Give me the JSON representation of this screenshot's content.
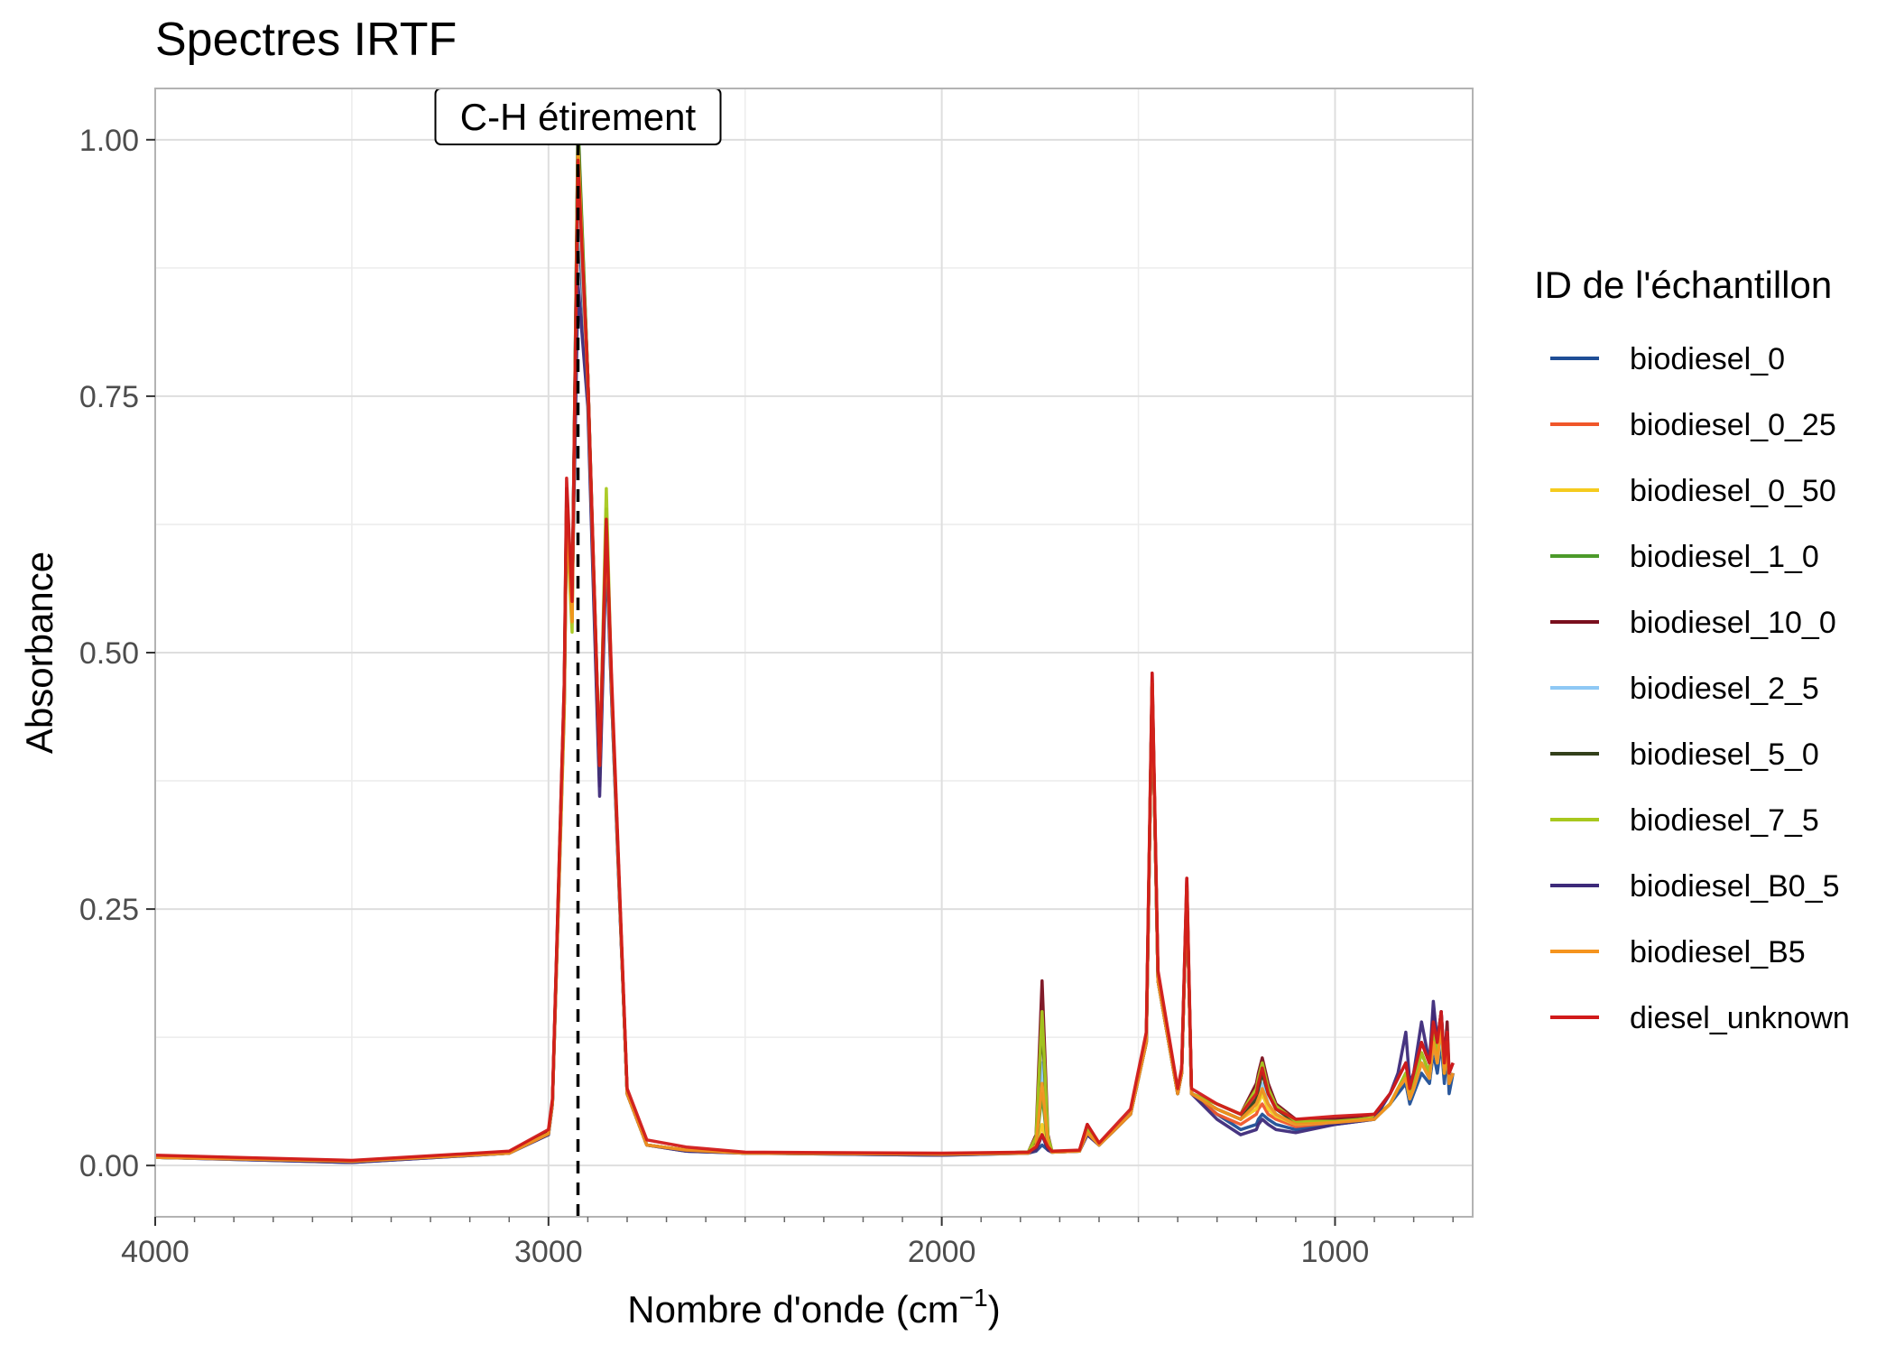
{
  "chart_data": {
    "type": "line",
    "title": "Spectres IRTF",
    "xlabel": "Nombre d'onde (cm",
    "xlabel_sup": "−1",
    "xlabel_close": ")",
    "ylabel": "Absorbance",
    "xlim": [
      4000,
      650
    ],
    "x_reversed": true,
    "ylim": [
      -0.05,
      1.05
    ],
    "x_ticks": [
      4000,
      3000,
      2000,
      1000
    ],
    "x_tick_labels": [
      "4000",
      "3000",
      "2000",
      "1000"
    ],
    "y_ticks": [
      0.0,
      0.25,
      0.5,
      0.75,
      1.0
    ],
    "y_tick_labels": [
      "0.00",
      "0.25",
      "0.50",
      "0.75",
      "1.00"
    ],
    "grid": true,
    "legend_position": "right",
    "legend_title": "ID de l'échantillon",
    "annotation": {
      "label": "C-H étirement",
      "x": 2925
    },
    "x": [
      4000,
      3500,
      3100,
      3000,
      2990,
      2960,
      2954,
      2940,
      2925,
      2900,
      2870,
      2853,
      2840,
      2800,
      2750,
      2650,
      2500,
      2000,
      1780,
      1760,
      1745,
      1730,
      1720,
      1650,
      1630,
      1600,
      1520,
      1480,
      1465,
      1450,
      1400,
      1390,
      1377,
      1365,
      1300,
      1240,
      1200,
      1195,
      1185,
      1170,
      1150,
      1100,
      1000,
      900,
      860,
      840,
      820,
      810,
      800,
      780,
      760,
      750,
      740,
      730,
      722,
      715,
      710,
      700
    ],
    "series": [
      {
        "name": "biodiesel_0",
        "color": "#1f4e96",
        "values": [
          0.008,
          0.003,
          0.012,
          0.03,
          0.06,
          0.45,
          0.64,
          0.55,
          0.93,
          0.75,
          0.38,
          0.61,
          0.46,
          0.07,
          0.02,
          0.014,
          0.012,
          0.01,
          0.012,
          0.014,
          0.02,
          0.015,
          0.013,
          0.014,
          0.03,
          0.02,
          0.05,
          0.12,
          0.47,
          0.18,
          0.07,
          0.09,
          0.27,
          0.07,
          0.05,
          0.035,
          0.04,
          0.045,
          0.05,
          0.045,
          0.04,
          0.035,
          0.04,
          0.045,
          0.06,
          0.07,
          0.08,
          0.06,
          0.07,
          0.09,
          0.08,
          0.11,
          0.09,
          0.12,
          0.08,
          0.11,
          0.07,
          0.09
        ]
      },
      {
        "name": "biodiesel_0_25",
        "color": "#f0562a",
        "values": [
          0.009,
          0.004,
          0.013,
          0.032,
          0.062,
          0.46,
          0.65,
          0.54,
          0.95,
          0.76,
          0.39,
          0.62,
          0.47,
          0.07,
          0.02,
          0.015,
          0.012,
          0.011,
          0.012,
          0.015,
          0.03,
          0.016,
          0.013,
          0.014,
          0.032,
          0.02,
          0.05,
          0.12,
          0.47,
          0.18,
          0.07,
          0.09,
          0.27,
          0.07,
          0.05,
          0.04,
          0.05,
          0.055,
          0.06,
          0.05,
          0.045,
          0.038,
          0.042,
          0.046,
          0.06,
          0.075,
          0.085,
          0.065,
          0.075,
          0.1,
          0.085,
          0.12,
          0.1,
          0.13,
          0.09,
          0.12,
          0.08,
          0.09
        ]
      },
      {
        "name": "biodiesel_0_50",
        "color": "#f5cb1e",
        "values": [
          0.008,
          0.004,
          0.012,
          0.031,
          0.061,
          0.45,
          0.64,
          0.54,
          0.96,
          0.76,
          0.39,
          0.62,
          0.47,
          0.07,
          0.02,
          0.015,
          0.012,
          0.011,
          0.012,
          0.016,
          0.04,
          0.016,
          0.013,
          0.014,
          0.032,
          0.02,
          0.05,
          0.12,
          0.47,
          0.18,
          0.07,
          0.09,
          0.27,
          0.07,
          0.055,
          0.045,
          0.055,
          0.06,
          0.07,
          0.055,
          0.048,
          0.04,
          0.043,
          0.047,
          0.06,
          0.075,
          0.085,
          0.065,
          0.075,
          0.1,
          0.085,
          0.12,
          0.1,
          0.13,
          0.09,
          0.12,
          0.08,
          0.09
        ]
      },
      {
        "name": "biodiesel_1_0",
        "color": "#4c9a2a",
        "values": [
          0.008,
          0.004,
          0.012,
          0.031,
          0.061,
          0.46,
          0.64,
          0.53,
          1.02,
          0.77,
          0.39,
          0.64,
          0.47,
          0.07,
          0.02,
          0.015,
          0.012,
          0.011,
          0.012,
          0.018,
          0.07,
          0.017,
          0.013,
          0.014,
          0.032,
          0.02,
          0.05,
          0.12,
          0.47,
          0.18,
          0.07,
          0.09,
          0.27,
          0.07,
          0.055,
          0.045,
          0.06,
          0.065,
          0.075,
          0.06,
          0.05,
          0.04,
          0.042,
          0.045,
          0.06,
          0.075,
          0.085,
          0.065,
          0.075,
          0.1,
          0.085,
          0.12,
          0.1,
          0.13,
          0.09,
          0.12,
          0.08,
          0.09
        ]
      },
      {
        "name": "biodiesel_10_0",
        "color": "#7a0f1e",
        "values": [
          0.009,
          0.004,
          0.013,
          0.033,
          0.063,
          0.47,
          0.66,
          0.55,
          0.97,
          0.77,
          0.37,
          0.62,
          0.47,
          0.07,
          0.02,
          0.015,
          0.012,
          0.011,
          0.013,
          0.03,
          0.18,
          0.03,
          0.014,
          0.014,
          0.04,
          0.02,
          0.05,
          0.12,
          0.48,
          0.18,
          0.07,
          0.09,
          0.28,
          0.07,
          0.06,
          0.05,
          0.08,
          0.09,
          0.105,
          0.08,
          0.06,
          0.045,
          0.045,
          0.05,
          0.07,
          0.085,
          0.1,
          0.075,
          0.09,
          0.12,
          0.1,
          0.15,
          0.12,
          0.15,
          0.1,
          0.14,
          0.09,
          0.1
        ]
      },
      {
        "name": "biodiesel_2_5",
        "color": "#8ec8f5",
        "values": [
          0.008,
          0.004,
          0.012,
          0.031,
          0.061,
          0.45,
          0.64,
          0.54,
          0.96,
          0.76,
          0.39,
          0.62,
          0.47,
          0.07,
          0.02,
          0.015,
          0.012,
          0.011,
          0.012,
          0.02,
          0.1,
          0.02,
          0.013,
          0.014,
          0.032,
          0.02,
          0.05,
          0.12,
          0.47,
          0.18,
          0.07,
          0.09,
          0.27,
          0.07,
          0.055,
          0.045,
          0.06,
          0.07,
          0.08,
          0.06,
          0.05,
          0.04,
          0.042,
          0.045,
          0.06,
          0.075,
          0.085,
          0.065,
          0.075,
          0.1,
          0.085,
          0.12,
          0.1,
          0.13,
          0.09,
          0.12,
          0.08,
          0.09
        ]
      },
      {
        "name": "biodiesel_5_0",
        "color": "#33401a",
        "values": [
          0.008,
          0.004,
          0.012,
          0.031,
          0.061,
          0.46,
          0.65,
          0.54,
          1.01,
          0.77,
          0.38,
          0.63,
          0.47,
          0.07,
          0.02,
          0.015,
          0.012,
          0.011,
          0.013,
          0.025,
          0.14,
          0.025,
          0.014,
          0.014,
          0.035,
          0.02,
          0.05,
          0.12,
          0.47,
          0.18,
          0.07,
          0.09,
          0.27,
          0.07,
          0.055,
          0.045,
          0.065,
          0.075,
          0.09,
          0.07,
          0.055,
          0.042,
          0.043,
          0.046,
          0.06,
          0.075,
          0.09,
          0.07,
          0.08,
          0.11,
          0.09,
          0.13,
          0.11,
          0.14,
          0.09,
          0.13,
          0.08,
          0.09
        ]
      },
      {
        "name": "biodiesel_7_5",
        "color": "#a8c81e",
        "values": [
          0.008,
          0.004,
          0.012,
          0.031,
          0.061,
          0.44,
          0.63,
          0.52,
          1.0,
          0.77,
          0.38,
          0.66,
          0.47,
          0.07,
          0.02,
          0.015,
          0.012,
          0.011,
          0.013,
          0.028,
          0.15,
          0.028,
          0.014,
          0.014,
          0.037,
          0.02,
          0.05,
          0.12,
          0.47,
          0.18,
          0.07,
          0.09,
          0.27,
          0.07,
          0.06,
          0.05,
          0.075,
          0.085,
          0.1,
          0.075,
          0.058,
          0.043,
          0.043,
          0.046,
          0.06,
          0.075,
          0.09,
          0.07,
          0.08,
          0.11,
          0.09,
          0.13,
          0.11,
          0.14,
          0.09,
          0.13,
          0.08,
          0.09
        ]
      },
      {
        "name": "biodiesel_B0_5",
        "color": "#3d2a7a",
        "values": [
          0.008,
          0.003,
          0.012,
          0.03,
          0.06,
          0.45,
          0.64,
          0.55,
          0.86,
          0.74,
          0.36,
          0.6,
          0.46,
          0.07,
          0.02,
          0.014,
          0.012,
          0.01,
          0.012,
          0.015,
          0.03,
          0.015,
          0.013,
          0.014,
          0.03,
          0.02,
          0.05,
          0.12,
          0.47,
          0.18,
          0.07,
          0.09,
          0.27,
          0.07,
          0.045,
          0.03,
          0.035,
          0.04,
          0.045,
          0.04,
          0.035,
          0.032,
          0.04,
          0.045,
          0.07,
          0.09,
          0.13,
          0.08,
          0.09,
          0.14,
          0.1,
          0.16,
          0.12,
          0.15,
          0.1,
          0.13,
          0.08,
          0.09
        ]
      },
      {
        "name": "biodiesel_B5",
        "color": "#f5941e",
        "values": [
          0.008,
          0.004,
          0.012,
          0.031,
          0.061,
          0.45,
          0.64,
          0.53,
          0.99,
          0.76,
          0.39,
          0.62,
          0.47,
          0.07,
          0.02,
          0.015,
          0.012,
          0.011,
          0.012,
          0.02,
          0.08,
          0.02,
          0.013,
          0.014,
          0.032,
          0.02,
          0.05,
          0.12,
          0.47,
          0.18,
          0.07,
          0.09,
          0.27,
          0.07,
          0.055,
          0.045,
          0.06,
          0.065,
          0.075,
          0.06,
          0.05,
          0.04,
          0.042,
          0.045,
          0.06,
          0.075,
          0.085,
          0.065,
          0.075,
          0.1,
          0.085,
          0.12,
          0.1,
          0.14,
          0.09,
          0.12,
          0.08,
          0.09
        ]
      },
      {
        "name": "diesel_unknown",
        "color": "#d11a1a",
        "values": [
          0.01,
          0.005,
          0.014,
          0.035,
          0.065,
          0.47,
          0.67,
          0.55,
          0.98,
          0.77,
          0.39,
          0.63,
          0.48,
          0.075,
          0.025,
          0.018,
          0.013,
          0.012,
          0.013,
          0.018,
          0.03,
          0.018,
          0.014,
          0.015,
          0.04,
          0.022,
          0.055,
          0.13,
          0.48,
          0.19,
          0.075,
          0.095,
          0.28,
          0.075,
          0.06,
          0.05,
          0.07,
          0.08,
          0.095,
          0.07,
          0.055,
          0.045,
          0.048,
          0.05,
          0.07,
          0.085,
          0.1,
          0.075,
          0.09,
          0.12,
          0.1,
          0.14,
          0.12,
          0.15,
          0.1,
          0.13,
          0.09,
          0.1
        ]
      }
    ]
  }
}
